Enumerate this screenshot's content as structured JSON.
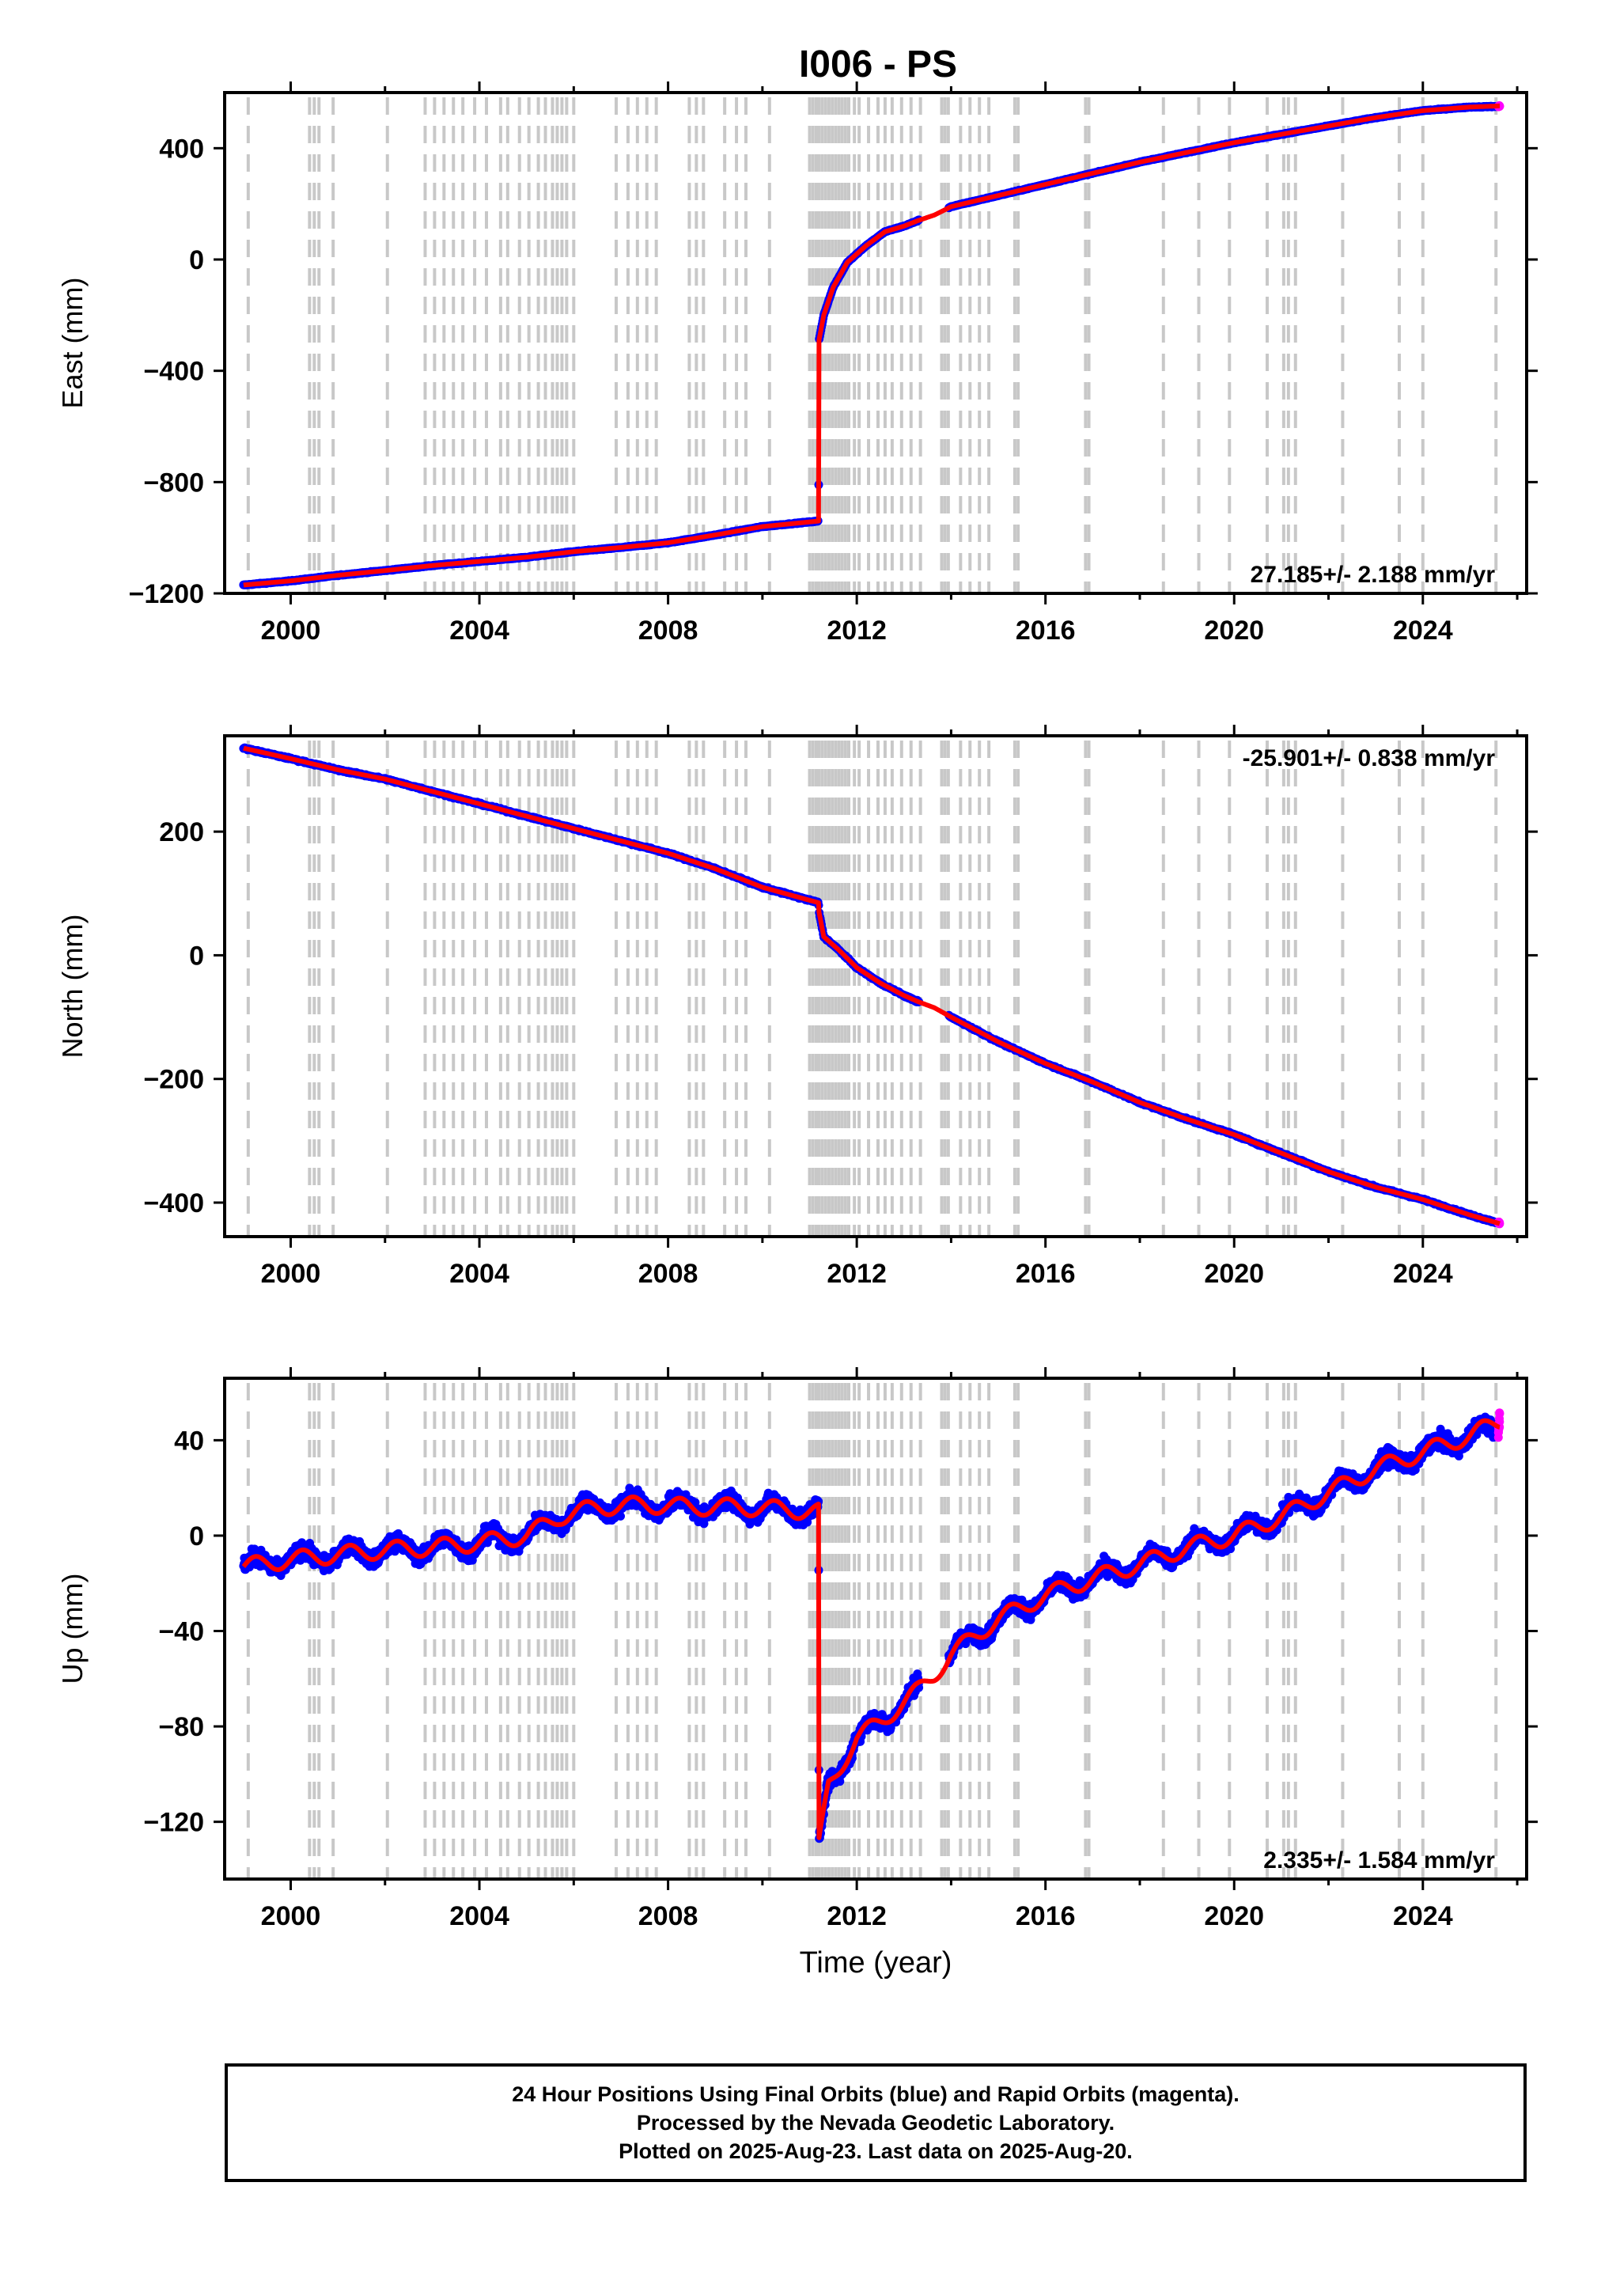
{
  "title": "I006 - PS",
  "colors": {
    "final_orbits": "#0000ff",
    "rapid_orbits": "#ff00ff",
    "model": "#ff0000",
    "event_lines": "#c8c8c8"
  },
  "footer": {
    "line1": "24 Hour Positions Using Final Orbits (blue) and Rapid Orbits (magenta).",
    "line2": "Processed by the Nevada Geodetic Laboratory.",
    "line3": "Plotted on 2025-Aug-23. Last data on 2025-Aug-20."
  },
  "chart_data": [
    {
      "type": "scatter",
      "ylabel": "East (mm)",
      "xlabel": "",
      "xlim": [
        1998.6,
        2026.2
      ],
      "ylim": [
        -1200,
        600
      ],
      "xticks": [
        2000,
        2004,
        2008,
        2012,
        2016,
        2020,
        2024
      ],
      "yticks": [
        -1200,
        -800,
        -400,
        0,
        400
      ],
      "velocity_label": "27.185+/- 2.188 mm/yr",
      "label_position": "bottom-right",
      "series": [
        {
          "role": "final_orbits",
          "x": [
            1999.0,
            2000.0,
            2001.0,
            2002.0,
            2003.0,
            2004.0,
            2005.0,
            2006.0,
            2007.0,
            2008.0,
            2009.0,
            2010.0,
            2011.19,
            2011.2,
            2011.3,
            2011.5,
            2011.8,
            2012.2,
            2012.6,
            2013.0,
            2013.3,
            2014.0,
            2015.0,
            2016.0,
            2017.0,
            2018.0,
            2019.0,
            2020.0,
            2021.0,
            2022.0,
            2023.0,
            2024.0,
            2025.0,
            2025.55
          ],
          "y": [
            -1170,
            -1155,
            -1135,
            -1118,
            -1100,
            -1085,
            -1070,
            -1050,
            -1035,
            -1018,
            -990,
            -960,
            -940,
            -290,
            -200,
            -100,
            -10,
            50,
            100,
            120,
            140,
            190,
            230,
            270,
            310,
            350,
            385,
            420,
            450,
            480,
            510,
            535,
            548,
            550
          ]
        },
        {
          "role": "rapid_orbits",
          "x": [
            2025.6,
            2025.63
          ],
          "y": [
            550,
            552
          ]
        },
        {
          "role": "model",
          "x": [
            1999.0,
            2000.0,
            2001.0,
            2002.0,
            2003.0,
            2004.0,
            2005.0,
            2006.0,
            2007.0,
            2008.0,
            2009.0,
            2010.0,
            2011.19,
            2011.2,
            2011.3,
            2011.5,
            2011.8,
            2012.2,
            2012.6,
            2013.0,
            2013.3,
            2013.65,
            2014.0,
            2015.0,
            2016.0,
            2017.0,
            2018.0,
            2019.0,
            2020.0,
            2021.0,
            2022.0,
            2023.0,
            2024.0,
            2025.0,
            2025.63
          ],
          "y": [
            -1170,
            -1155,
            -1135,
            -1118,
            -1100,
            -1085,
            -1070,
            -1050,
            -1035,
            -1018,
            -990,
            -960,
            -940,
            -290,
            -200,
            -100,
            -10,
            50,
            100,
            120,
            140,
            160,
            190,
            230,
            270,
            310,
            350,
            385,
            420,
            450,
            480,
            510,
            535,
            548,
            552
          ]
        }
      ]
    },
    {
      "type": "scatter",
      "ylabel": "North (mm)",
      "xlabel": "",
      "xlim": [
        1998.6,
        2026.2
      ],
      "ylim": [
        -455,
        355
      ],
      "xticks": [
        2000,
        2004,
        2008,
        2012,
        2016,
        2020,
        2024
      ],
      "yticks": [
        -400,
        -200,
        0,
        200
      ],
      "velocity_label": "-25.901+/- 0.838 mm/yr",
      "label_position": "top-right",
      "series": [
        {
          "role": "final_orbits",
          "x": [
            1999.0,
            2000.0,
            2001.0,
            2002.0,
            2003.0,
            2004.0,
            2005.0,
            2006.0,
            2007.0,
            2008.0,
            2009.0,
            2010.0,
            2011.19,
            2011.2,
            2011.3,
            2011.6,
            2012.0,
            2012.5,
            2013.0,
            2013.3,
            2014.0,
            2015.0,
            2016.0,
            2017.0,
            2018.0,
            2019.0,
            2020.0,
            2021.0,
            2022.0,
            2023.0,
            2024.0,
            2025.0,
            2025.55
          ],
          "y": [
            335,
            318,
            300,
            285,
            265,
            245,
            225,
            205,
            185,
            165,
            140,
            110,
            85,
            70,
            30,
            10,
            -20,
            -45,
            -65,
            -75,
            -100,
            -140,
            -175,
            -205,
            -238,
            -265,
            -290,
            -320,
            -350,
            -375,
            -395,
            -420,
            -432
          ]
        },
        {
          "role": "rapid_orbits",
          "x": [
            2025.6,
            2025.63
          ],
          "y": [
            -432,
            -434
          ]
        },
        {
          "role": "model",
          "x": [
            1999.0,
            2000.0,
            2001.0,
            2002.0,
            2003.0,
            2004.0,
            2005.0,
            2006.0,
            2007.0,
            2008.0,
            2009.0,
            2010.0,
            2011.19,
            2011.2,
            2011.3,
            2011.6,
            2012.0,
            2012.5,
            2013.0,
            2013.3,
            2013.65,
            2014.0,
            2015.0,
            2016.0,
            2017.0,
            2018.0,
            2019.0,
            2020.0,
            2021.0,
            2022.0,
            2023.0,
            2024.0,
            2025.0,
            2025.63
          ],
          "y": [
            335,
            318,
            300,
            285,
            265,
            245,
            225,
            205,
            185,
            165,
            140,
            110,
            85,
            70,
            30,
            10,
            -20,
            -45,
            -65,
            -75,
            -85,
            -100,
            -140,
            -175,
            -205,
            -238,
            -265,
            -290,
            -320,
            -350,
            -375,
            -395,
            -420,
            -434
          ]
        }
      ]
    },
    {
      "type": "scatter",
      "ylabel": "Up (mm)",
      "xlabel": "Time (year)",
      "xlim": [
        1998.6,
        2026.2
      ],
      "ylim": [
        -144,
        66
      ],
      "xticks": [
        2000,
        2004,
        2008,
        2012,
        2016,
        2020,
        2024
      ],
      "yticks": [
        -120,
        -80,
        -40,
        0,
        40
      ],
      "velocity_label": "2.335+/- 1.584 mm/yr",
      "label_position": "bottom-right",
      "series": [
        {
          "role": "final_orbits",
          "x": [
            1999.0,
            2000.0,
            2001.0,
            2002.0,
            2003.0,
            2004.0,
            2005.0,
            2005.7,
            2006.5,
            2007.5,
            2008.5,
            2009.5,
            2010.5,
            2011.19,
            2011.2,
            2011.4,
            2011.7,
            2012.0,
            2012.5,
            2013.0,
            2013.3,
            2014.0,
            2014.5,
            2015.0,
            2015.5,
            2016.0,
            2017.0,
            2018.0,
            2019.0,
            2020.0,
            2021.0,
            2022.0,
            2023.0,
            2024.0,
            2025.0,
            2025.55
          ],
          "y": [
            -13,
            -10,
            -8,
            -6,
            -5,
            -3,
            0,
            8,
            12,
            13,
            12,
            12,
            11,
            10,
            -130,
            -105,
            -95,
            -85,
            -78,
            -70,
            -65,
            -50,
            -42,
            -35,
            -30,
            -25,
            -18,
            -12,
            -5,
            0,
            8,
            18,
            28,
            35,
            42,
            45
          ]
        },
        {
          "role": "rapid_orbits",
          "x": [
            2025.6,
            2025.63
          ],
          "y": [
            45,
            48
          ]
        },
        {
          "role": "model",
          "x": [
            1999.0,
            2000.0,
            2001.0,
            2002.0,
            2003.0,
            2004.0,
            2005.0,
            2005.7,
            2006.5,
            2007.5,
            2008.5,
            2009.5,
            2010.5,
            2011.19,
            2011.2,
            2011.4,
            2011.7,
            2012.0,
            2012.5,
            2013.0,
            2013.3,
            2013.65,
            2014.0,
            2014.5,
            2015.0,
            2015.5,
            2016.0,
            2017.0,
            2018.0,
            2019.0,
            2020.0,
            2021.0,
            2022.0,
            2023.0,
            2024.0,
            2025.0,
            2025.63
          ],
          "y": [
            -13,
            -10,
            -8,
            -6,
            -5,
            -3,
            0,
            8,
            12,
            13,
            12,
            12,
            11,
            10,
            -130,
            -105,
            -95,
            -85,
            -78,
            -70,
            -65,
            -58,
            -50,
            -42,
            -35,
            -30,
            -25,
            -18,
            -12,
            -5,
            0,
            8,
            18,
            28,
            35,
            42,
            48
          ]
        }
      ]
    }
  ],
  "event_years": [
    1999.1,
    2000.4,
    2000.5,
    2000.6,
    2000.9,
    2002.05,
    2002.85,
    2003.05,
    2003.25,
    2003.45,
    2003.65,
    2003.9,
    2004.15,
    2004.45,
    2004.6,
    2004.85,
    2005.05,
    2005.25,
    2005.4,
    2005.55,
    2005.65,
    2005.75,
    2005.85,
    2006.0,
    2006.9,
    2007.15,
    2007.35,
    2007.55,
    2007.75,
    2008.45,
    2008.6,
    2008.75,
    2009.2,
    2009.45,
    2009.65,
    2010.15,
    2011.0,
    2011.07,
    2011.14,
    2011.2,
    2011.27,
    2011.34,
    2011.41,
    2011.48,
    2011.55,
    2011.62,
    2011.69,
    2011.76,
    2011.83,
    2011.95,
    2012.05,
    2012.25,
    2012.45,
    2012.6,
    2012.75,
    2012.95,
    2013.15,
    2013.35,
    2013.8,
    2013.87,
    2013.94,
    2014.2,
    2014.4,
    2014.6,
    2014.8,
    2015.35,
    2015.42,
    2016.85,
    2016.92,
    2018.5,
    2019.25,
    2019.9,
    2020.7,
    2021.05,
    2021.15,
    2021.3,
    2022.3,
    2023.5,
    2024.0,
    2025.55
  ]
}
